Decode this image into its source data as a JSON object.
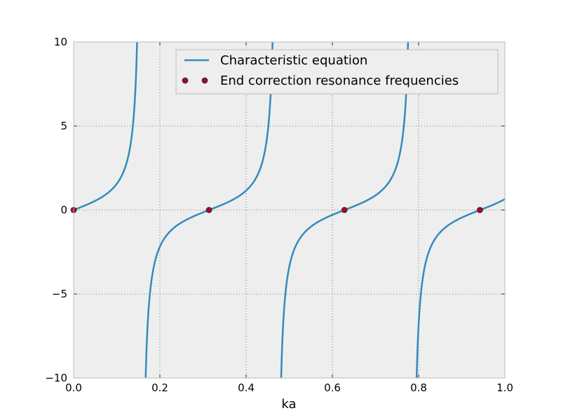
{
  "chart_data": {
    "type": "line",
    "title": "",
    "xlabel": "ka",
    "ylabel": "",
    "xlim": [
      0.0,
      1.0
    ],
    "ylim": [
      -10,
      10
    ],
    "grid": true,
    "legend_position": "top-right",
    "x_ticks": [
      0.0,
      0.2,
      0.4,
      0.6,
      0.8,
      1.0
    ],
    "x_tick_labels": [
      "0.0",
      "0.2",
      "0.4",
      "0.6",
      "0.8",
      "1.0"
    ],
    "y_ticks": [
      10,
      5,
      0,
      -5,
      -10
    ],
    "y_tick_labels": [
      "10",
      "5",
      "0",
      "−5",
      "−10"
    ],
    "colors": {
      "line": "#348abd",
      "marker_fill": "#a60628",
      "axes_bg": "#eeeeee",
      "grid": "#555555"
    },
    "series": [
      {
        "name": "Characteristic equation",
        "kind": "line",
        "function": "tan(10*ka)",
        "x_range": [
          0.0,
          1.0
        ]
      },
      {
        "name": "End correction resonance frequencies",
        "kind": "markers",
        "x": [
          0.0,
          0.314,
          0.628,
          0.942
        ],
        "y": [
          0,
          0,
          0,
          0
        ]
      }
    ]
  }
}
